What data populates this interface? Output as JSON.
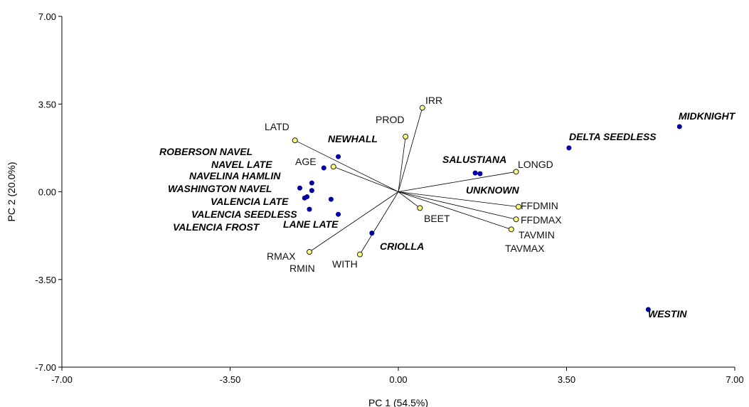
{
  "chart_data": {
    "type": "scatter",
    "subtype": "pca-biplot",
    "xlabel": "PC 1 (54.5%)",
    "ylabel": "PC 2  (20.0%)",
    "xlim": [
      -7.0,
      7.0
    ],
    "ylim": [
      -7.0,
      7.0
    ],
    "x_ticks": [
      -7.0,
      -3.5,
      0.0,
      3.5,
      7.0
    ],
    "y_ticks": [
      -7.0,
      -3.5,
      0.0,
      3.5,
      7.0
    ],
    "x_tick_labels": [
      "-7.00",
      "-3.50",
      "0.00",
      "3.50",
      "7.00"
    ],
    "y_tick_labels": [
      "-7.00",
      "-3.50",
      "0.00",
      "3.50",
      "7.00"
    ],
    "grid": false,
    "colors": {
      "observations": "#0000a0",
      "variables": "#ffff80",
      "vectors": "#000000"
    },
    "variables": [
      {
        "name": "IRR",
        "x": 0.5,
        "y": 3.35
      },
      {
        "name": "PROD",
        "x": 0.15,
        "y": 2.2
      },
      {
        "name": "LATD",
        "x": -2.15,
        "y": 2.05
      },
      {
        "name": "AGE",
        "x": -1.35,
        "y": 1.0
      },
      {
        "name": "LONGD",
        "x": 2.45,
        "y": 0.8
      },
      {
        "name": "FFDMIN",
        "x": 2.5,
        "y": -0.6
      },
      {
        "name": "FFDMAX",
        "x": 2.45,
        "y": -1.1
      },
      {
        "name": "TAVMIN",
        "x": 2.35,
        "y": -1.5
      },
      {
        "name": "BEET",
        "x": 0.45,
        "y": -0.65
      },
      {
        "name": "WITH",
        "x": -0.8,
        "y": -2.5
      },
      {
        "name": "RMAX",
        "x": -1.85,
        "y": -2.4
      }
    ],
    "variable_labels_extra": [
      "TAVMAX",
      "RMIN"
    ],
    "observations": [
      {
        "name": "MIDKNIGHT",
        "x": 5.85,
        "y": 2.6
      },
      {
        "name": "DELTA SEEDLESS",
        "x": 3.55,
        "y": 1.75
      },
      {
        "name": "SALUSTIANA",
        "x": 1.6,
        "y": 0.75
      },
      {
        "name": "UNKNOWN",
        "x": 1.7,
        "y": 0.72
      },
      {
        "name": "NEWHALL",
        "x": -1.25,
        "y": 1.4
      },
      {
        "name": "ROBERSON NAVEL",
        "x": -1.55,
        "y": 0.95
      },
      {
        "name": "NAVEL LATE",
        "x": -1.8,
        "y": 0.35
      },
      {
        "name": "NAVELINA HAMLIN",
        "x": -1.8,
        "y": 0.05
      },
      {
        "name": "WASHINGTON NAVEL",
        "x": -2.05,
        "y": 0.15
      },
      {
        "name": "VALENCIA LATE",
        "x": -1.9,
        "y": -0.2
      },
      {
        "name": "VALENCIA SEEDLESS",
        "x": -1.85,
        "y": -0.7
      },
      {
        "name": "VALENCIA FROST",
        "x": -1.95,
        "y": -0.25
      },
      {
        "name": "LANE LATE",
        "x": -1.25,
        "y": -0.9
      },
      {
        "name": "CRIOLLA",
        "x": -0.55,
        "y": -1.65
      },
      {
        "name": "WESTIN",
        "x": 5.2,
        "y": -4.7
      },
      {
        "name": "",
        "x": -1.4,
        "y": -0.3
      }
    ]
  }
}
